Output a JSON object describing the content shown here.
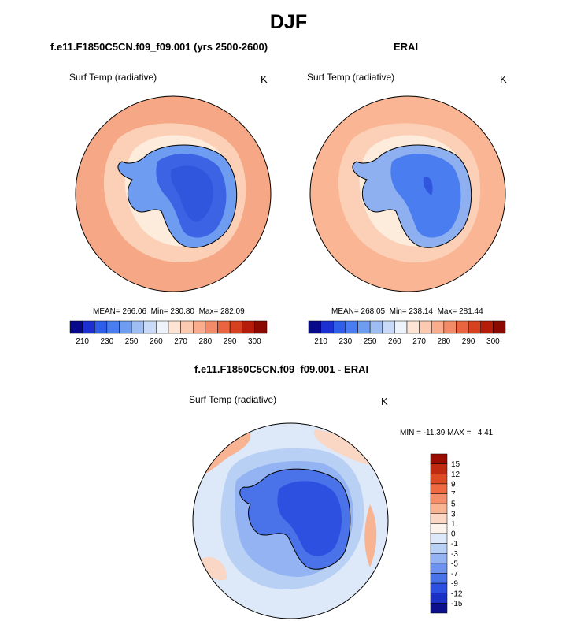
{
  "title": "DJF",
  "panels": [
    {
      "case_title": "f.e11.F1850C5CN.f09_f09.001 (yrs 2500-2600)",
      "variable": "Surf Temp (radiative)",
      "units": "K",
      "mean_label": "MEAN=",
      "mean": "266.06",
      "min_label": "Min=",
      "min": "230.80",
      "max_label": "Max=",
      "max": "282.09"
    },
    {
      "case_title": "ERAI",
      "variable": "Surf Temp (radiative)",
      "units": "K",
      "mean_label": "MEAN=",
      "mean": "268.05",
      "min_label": "Min=",
      "min": "238.14",
      "max_label": "Max=",
      "max": "281.44"
    },
    {
      "case_title": "f.e11.F1850C5CN.f09_f09.001 - ERAI",
      "variable": "Surf Temp (radiative)",
      "units": "K",
      "minmax_text": "MIN = -11.39 MAX =   4.41"
    }
  ],
  "chart_data": [
    {
      "type": "heatmap",
      "projection": "south polar stereographic",
      "title": "f.e11.F1850C5CN.f09_f09.001 (yrs 2500-2600)",
      "variable": "Surf Temp (radiative)",
      "units": "K",
      "stats": {
        "mean": 266.06,
        "min": 230.8,
        "max": 282.09
      },
      "colorbar_ticks": [
        "210",
        "230",
        "250",
        "260",
        "270",
        "280",
        "290",
        "300"
      ],
      "colorbar_colors": [
        "#08088a",
        "#1c2fd0",
        "#2f5ee8",
        "#4a7ef0",
        "#6e9cf0",
        "#9ebdf2",
        "#c8daf8",
        "#eef3fb",
        "#fde4d4",
        "#fccab0",
        "#f9ad8c",
        "#f28c68",
        "#e86540",
        "#d6411f",
        "#b51c0a",
        "#8b0a00"
      ]
    },
    {
      "type": "heatmap",
      "projection": "south polar stereographic",
      "title": "ERAI",
      "variable": "Surf Temp (radiative)",
      "units": "K",
      "stats": {
        "mean": 268.05,
        "min": 238.14,
        "max": 281.44
      },
      "colorbar_ticks": [
        "210",
        "230",
        "250",
        "260",
        "270",
        "280",
        "290",
        "300"
      ],
      "colorbar_colors": [
        "#08088a",
        "#1c2fd0",
        "#2f5ee8",
        "#4a7ef0",
        "#6e9cf0",
        "#9ebdf2",
        "#c8daf8",
        "#eef3fb",
        "#fde4d4",
        "#fccab0",
        "#f9ad8c",
        "#f28c68",
        "#e86540",
        "#d6411f",
        "#b51c0a",
        "#8b0a00"
      ]
    },
    {
      "type": "heatmap",
      "projection": "south polar stereographic",
      "title": "f.e11.F1850C5CN.f09_f09.001 - ERAI",
      "variable": "Surf Temp (radiative)",
      "units": "K",
      "stats": {
        "min": -11.39,
        "max": 4.41
      },
      "colorbar_ticks": [
        "15",
        "12",
        "9",
        "7",
        "5",
        "3",
        "1",
        "0",
        "-1",
        "-3",
        "-5",
        "-7",
        "-9",
        "-12",
        "-15"
      ],
      "colorbar_colors": [
        "#9b0c00",
        "#c02a10",
        "#de4a22",
        "#ef6a40",
        "#f48e6a",
        "#f7b392",
        "#fad7c4",
        "#fbf2ec",
        "#dde9f8",
        "#b9d0f5",
        "#93b3f2",
        "#6d93ee",
        "#4a73ea",
        "#2e50e0",
        "#1b30c4",
        "#0c108c"
      ]
    }
  ]
}
